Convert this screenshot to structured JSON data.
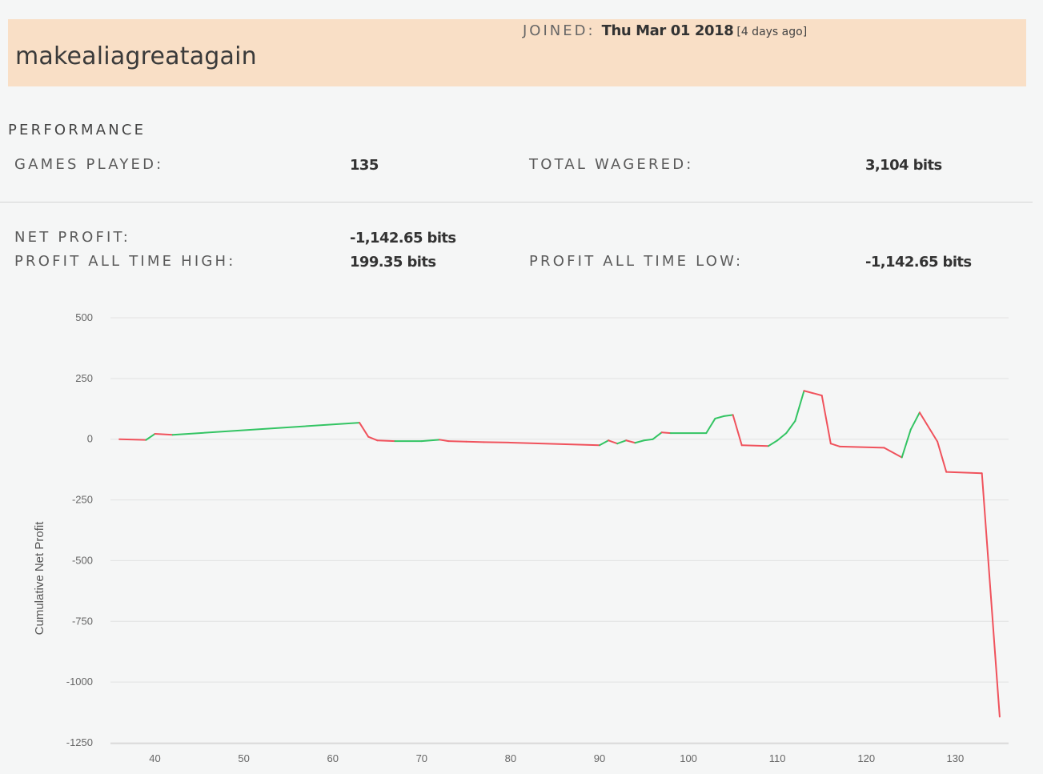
{
  "profile": {
    "username": "makealiagreatagain",
    "joined_label": "JOINED:",
    "joined_date": "Thu Mar 01 2018",
    "joined_ago": "[4 days ago]"
  },
  "performance": {
    "title": "PERFORMANCE",
    "games_played_label": "GAMES PLAYED:",
    "games_played": "135",
    "total_wagered_label": "TOTAL WAGERED:",
    "total_wagered": "3,104 bits",
    "net_profit_label": "NET PROFIT:",
    "net_profit": "-1,142.65 bits",
    "ath_label": "PROFIT ALL TIME HIGH:",
    "ath": "199.35 bits",
    "atl_label": "PROFIT ALL TIME LOW:",
    "atl": "-1,142.65 bits"
  },
  "colors": {
    "up": "#33c463",
    "down": "#f0525c",
    "header_bg": "#f9dfc6",
    "grid": "#e2e2e2"
  },
  "chart_data": {
    "type": "line",
    "title": "",
    "xlabel": "",
    "ylabel": "Cumulative Net Profit",
    "xlim": [
      35,
      136
    ],
    "ylim": [
      -1250,
      500
    ],
    "xticks": [
      40,
      50,
      60,
      70,
      80,
      90,
      100,
      110,
      120,
      130
    ],
    "yticks": [
      500,
      250,
      0,
      -250,
      -500,
      -750,
      -1000,
      -1250
    ],
    "grid": true,
    "points": [
      [
        36,
        0
      ],
      [
        39,
        -3
      ],
      [
        40,
        22
      ],
      [
        42,
        18
      ],
      [
        63,
        68
      ],
      [
        64,
        10
      ],
      [
        65,
        -5
      ],
      [
        67,
        -8
      ],
      [
        70,
        -8
      ],
      [
        72,
        -2
      ],
      [
        73,
        -8
      ],
      [
        75,
        -10
      ],
      [
        77,
        -12
      ],
      [
        80,
        -14
      ],
      [
        90,
        -25
      ],
      [
        91,
        -5
      ],
      [
        92,
        -18
      ],
      [
        93,
        -5
      ],
      [
        94,
        -15
      ],
      [
        95,
        -5
      ],
      [
        96,
        0
      ],
      [
        97,
        28
      ],
      [
        98,
        25
      ],
      [
        102,
        25
      ],
      [
        103,
        85
      ],
      [
        104,
        95
      ],
      [
        105,
        100
      ],
      [
        106,
        -25
      ],
      [
        109,
        -28
      ],
      [
        110,
        -5
      ],
      [
        111,
        25
      ],
      [
        112,
        75
      ],
      [
        113,
        199.35
      ],
      [
        115,
        180
      ],
      [
        116,
        -18
      ],
      [
        117,
        -30
      ],
      [
        122,
        -35
      ],
      [
        124,
        -75
      ],
      [
        125,
        40
      ],
      [
        126,
        110
      ],
      [
        128,
        -10
      ],
      [
        129,
        -135
      ],
      [
        133,
        -140
      ],
      [
        135,
        -1142.65
      ]
    ]
  }
}
